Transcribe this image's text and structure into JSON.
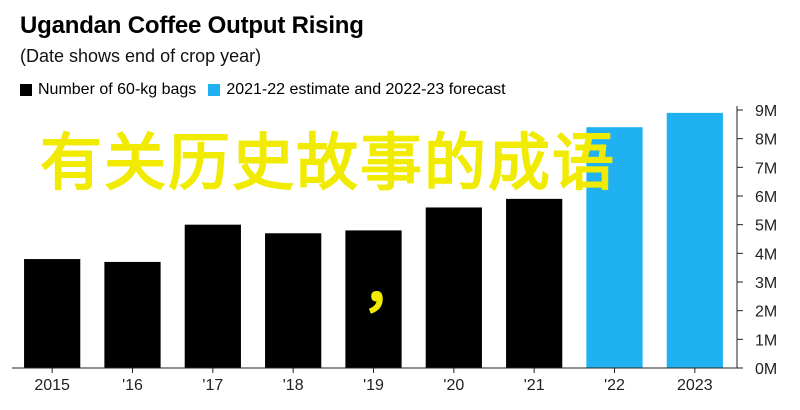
{
  "chart_data": {
    "type": "bar",
    "title": "Ugandan Coffee Output Rising",
    "subtitle": "(Date shows end of crop year)",
    "categories": [
      "2015",
      "'16",
      "'17",
      "'18",
      "'19",
      "'20",
      "'21",
      "'22",
      "2023"
    ],
    "series": [
      {
        "name": "Number of 60-kg bags",
        "color": "#000000",
        "values": [
          3.8,
          3.7,
          5.0,
          4.7,
          4.8,
          5.6,
          5.9,
          null,
          null
        ]
      },
      {
        "name": "2021-22 estimate and 2022-23 forecast",
        "color": "#1fb1f2",
        "values": [
          null,
          null,
          null,
          null,
          null,
          null,
          null,
          8.4,
          8.9
        ]
      }
    ],
    "yticks": [
      "0M",
      "1M",
      "2M",
      "3M",
      "4M",
      "5M",
      "6M",
      "7M",
      "8M",
      "9M"
    ],
    "ylim": [
      0,
      9
    ],
    "ylabel": "",
    "xlabel": "",
    "legend_position": "top-left",
    "grid": false
  },
  "overlay": {
    "text": "有关历史故事的成语",
    "comma": "，",
    "color": "#f0eb00"
  }
}
